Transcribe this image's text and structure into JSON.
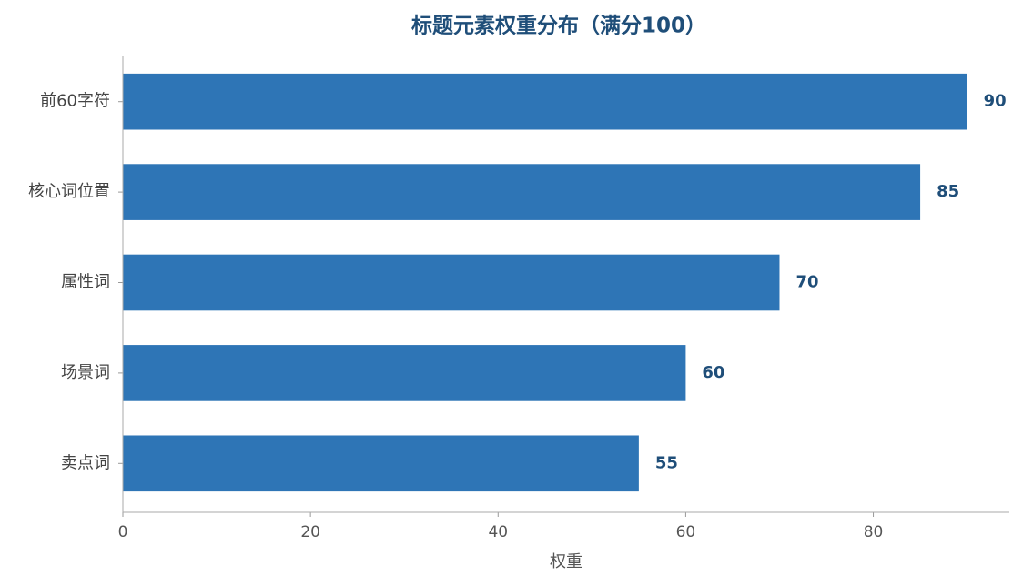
{
  "chart_data": {
    "type": "bar",
    "orientation": "horizontal",
    "title": "标题元素权重分布（满分100）",
    "categories": [
      "前60字符",
      "核心词位置",
      "属性词",
      "场景词",
      "卖点词"
    ],
    "values": [
      90,
      85,
      70,
      60,
      55
    ],
    "color": "#2e75b6",
    "xlabel": "权重",
    "xlim": [
      0,
      94.5
    ],
    "xticks": [
      0,
      20,
      40,
      60,
      80
    ],
    "grid": false
  }
}
